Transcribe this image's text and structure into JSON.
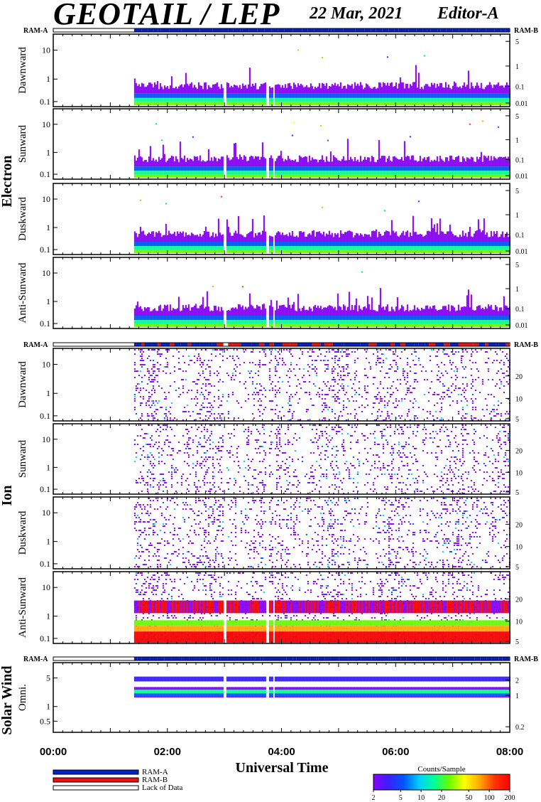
{
  "header": {
    "title": "GEOTAIL / LEP",
    "date": "22 Mar, 2021",
    "editor": "Editor-A"
  },
  "ram": {
    "ram_a": "RAM-A",
    "ram_b": "RAM-B"
  },
  "colors": {
    "ram_a": "#0022cc",
    "ram_b": "#ee1111",
    "lack": "#ffffff",
    "spectrum": [
      "#8a00ff",
      "#3a20ff",
      "#0055ff",
      "#00ccff",
      "#00ff99",
      "#66ff00",
      "#ffff00",
      "#ffaa00",
      "#ff3300",
      "#ff0000"
    ]
  },
  "chart_data": [
    {
      "type": "heatmap",
      "group": "Electron",
      "panels": [
        {
          "ylabel": "Dawnward",
          "left_ticks": [
            "10",
            "1",
            "0.1"
          ],
          "right_ticks": [
            "5",
            "1",
            "0.1",
            "0.01"
          ]
        },
        {
          "ylabel": "Sunward",
          "left_ticks": [
            "10",
            "1",
            "0.1"
          ],
          "right_ticks": [
            "5",
            "1",
            "0.1",
            "0.01"
          ]
        },
        {
          "ylabel": "Duskward",
          "left_ticks": [
            "10",
            "1",
            "0.1"
          ],
          "right_ticks": [
            "5",
            "1",
            "0.1",
            "0.01"
          ]
        },
        {
          "ylabel": "Anti-Sunward",
          "left_ticks": [
            "10",
            "1",
            "0.1"
          ],
          "right_ticks": [
            "5",
            "1",
            "0.1",
            "0.01"
          ]
        }
      ],
      "data_start": "01:25",
      "data_end": "08:00"
    },
    {
      "type": "heatmap",
      "group": "Ion",
      "panels": [
        {
          "ylabel": "Dawnward",
          "left_ticks": [
            "10",
            "1",
            "0.1"
          ],
          "right_ticks": [
            "20",
            "10",
            "5"
          ]
        },
        {
          "ylabel": "Sunward",
          "left_ticks": [
            "10",
            "1",
            "0.1"
          ],
          "right_ticks": [
            "20",
            "10",
            "5"
          ]
        },
        {
          "ylabel": "Duskward",
          "left_ticks": [
            "10",
            "1",
            "0.1"
          ],
          "right_ticks": [
            "20",
            "10",
            "5"
          ]
        },
        {
          "ylabel": "Anti-Sunward",
          "left_ticks": [
            "10",
            "1",
            "0.1"
          ],
          "right_ticks": [
            "20",
            "10",
            "5"
          ]
        }
      ],
      "data_start": "01:25",
      "data_end": "08:00"
    },
    {
      "type": "heatmap",
      "group": "Solar Wind",
      "panels": [
        {
          "ylabel": "Omni.",
          "left_ticks": [
            "5",
            "1",
            "0.5"
          ],
          "right_ticks": [
            "2",
            "1",
            "0.2"
          ]
        }
      ],
      "data_start": "01:25",
      "data_end": "08:00"
    }
  ],
  "x_axis": {
    "label": "Universal Time",
    "ticks": [
      "00:00",
      "02:00",
      "04:00",
      "06:00",
      "08:00"
    ],
    "range": [
      "00:00",
      "08:00"
    ]
  },
  "legend": {
    "items": [
      {
        "label": "RAM-A",
        "color": "#0022cc"
      },
      {
        "label": "RAM-B",
        "color": "#ee1111"
      },
      {
        "label": "Lack of Data",
        "color": "#ffffff"
      }
    ]
  },
  "colorbar": {
    "title": "Counts/Sample",
    "ticks": [
      "2",
      "5",
      "10",
      "20",
      "50",
      "100",
      "200"
    ]
  }
}
